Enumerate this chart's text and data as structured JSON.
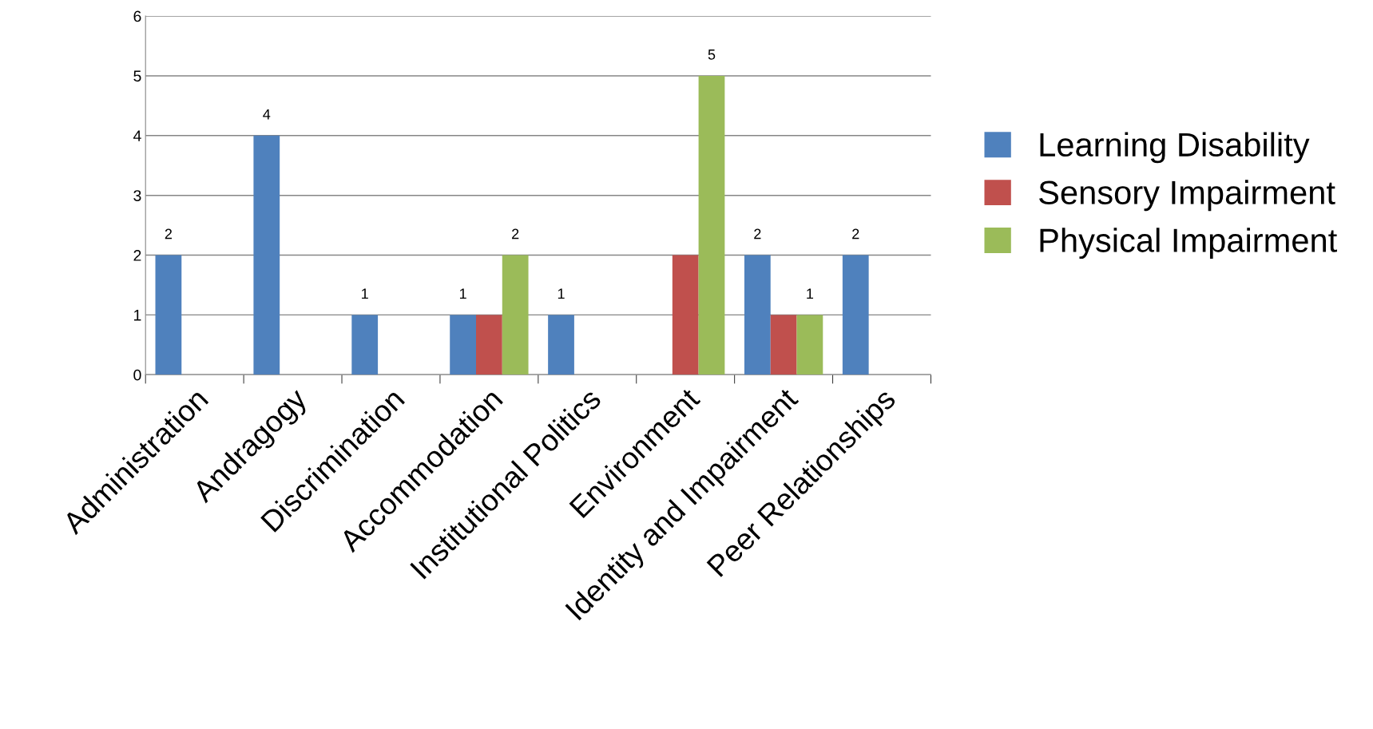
{
  "chart_data": {
    "type": "bar",
    "categories": [
      "Administration",
      "Andragogy",
      "Discrimination",
      "Accommodation",
      "Institutional Politics",
      "Environment",
      "Identity and Impairment",
      "Peer Relationships"
    ],
    "series": [
      {
        "name": "Learning Disability",
        "color": "#4f81bd",
        "values": [
          2,
          4,
          1,
          1,
          1,
          null,
          2,
          2
        ],
        "value_labels": [
          "2",
          "4",
          "1",
          "1",
          "1",
          null,
          "2",
          "2"
        ]
      },
      {
        "name": "Sensory Impairment",
        "color": "#c0504d",
        "values": [
          null,
          null,
          null,
          1,
          null,
          2,
          1,
          null
        ],
        "value_labels": [
          null,
          null,
          null,
          null,
          null,
          null,
          null,
          null
        ]
      },
      {
        "name": "Physical Impairment",
        "color": "#9bbb59",
        "values": [
          null,
          null,
          null,
          2,
          null,
          5,
          1,
          null
        ],
        "value_labels": [
          null,
          null,
          null,
          "2",
          null,
          "5",
          "1",
          null
        ]
      }
    ],
    "ylim": [
      0,
      6
    ],
    "yticks": [
      0,
      1,
      2,
      3,
      4,
      5,
      6
    ],
    "grid": "y",
    "legend": "right"
  }
}
